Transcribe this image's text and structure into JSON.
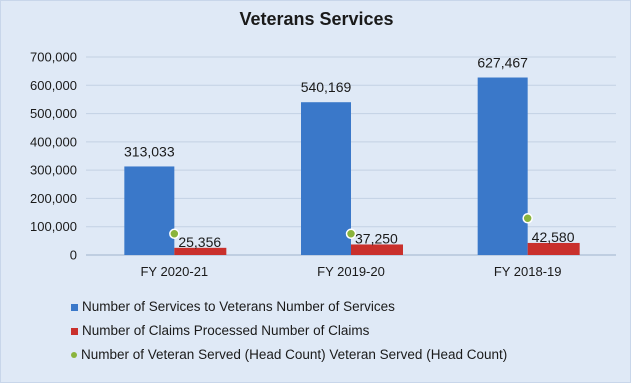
{
  "chart_data": {
    "type": "bar",
    "title": "Veterans Services",
    "categories": [
      "FY 2020-21",
      "FY 2019-20",
      "FY 2018-19"
    ],
    "ylim": [
      0,
      700000
    ],
    "yticks": [
      0,
      100000,
      200000,
      300000,
      400000,
      500000,
      600000,
      700000
    ],
    "ytick_labels": [
      "0",
      "100,000",
      "200,000",
      "300,000",
      "400,000",
      "500,000",
      "600,000",
      "700,000"
    ],
    "grid": true,
    "legend_position": "bottom",
    "series": [
      {
        "name": "Number of Services to Veterans Number of Services",
        "kind": "bar",
        "color": "#3a78c9",
        "values": [
          313033,
          540169,
          627467
        ],
        "labels": [
          "313,033",
          "540,169",
          "627,467"
        ]
      },
      {
        "name": "Number of Claims Processed  Number of Claims",
        "kind": "bar",
        "color": "#c9302c",
        "values": [
          25356,
          37250,
          42580
        ],
        "labels": [
          "25,356",
          "37,250",
          "42,580"
        ]
      },
      {
        "name": "Number of Veteran Served (Head Count) Veteran Served (Head Count)",
        "kind": "scatter",
        "color": "#8ab43c",
        "values": [
          75000,
          75000,
          130000
        ]
      }
    ]
  }
}
